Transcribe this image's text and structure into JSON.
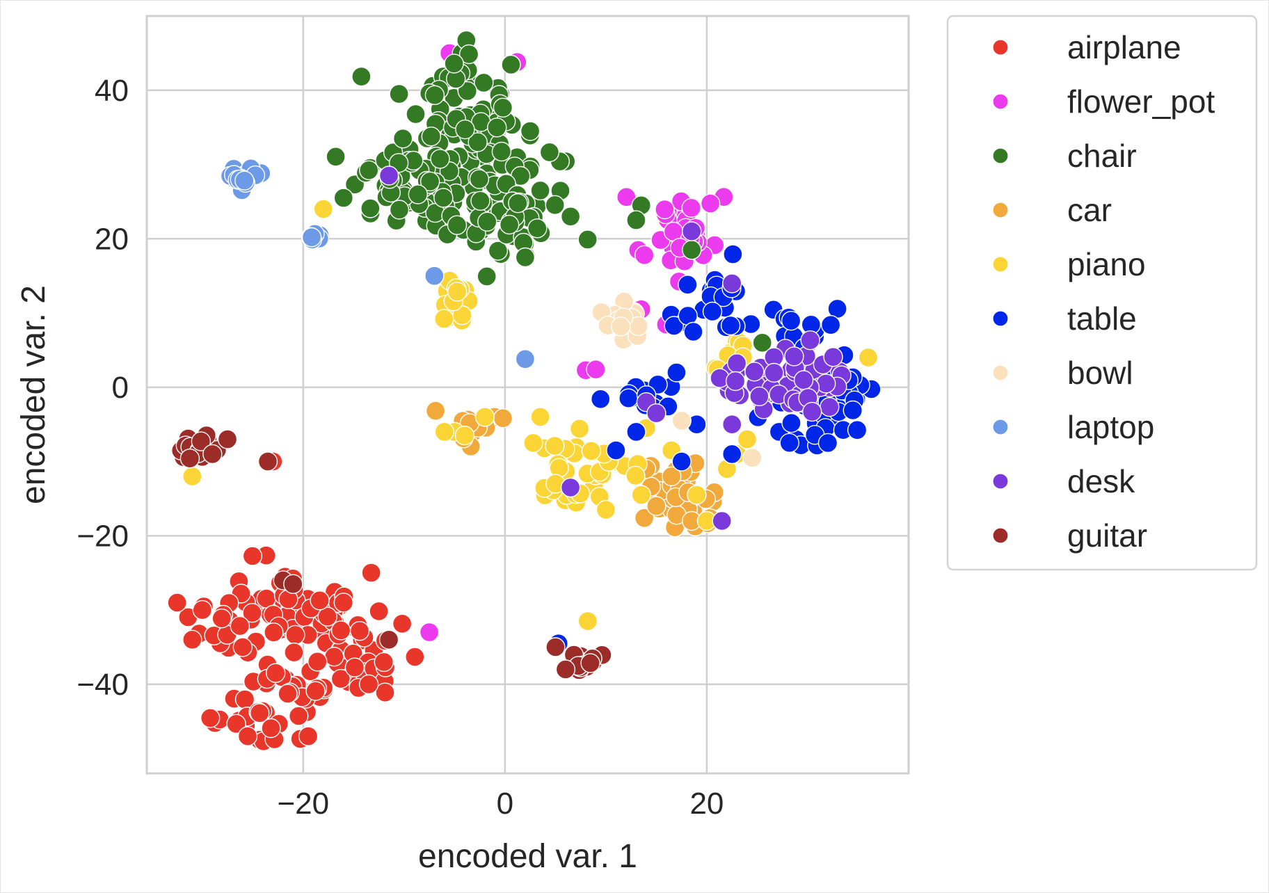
{
  "chart_data": {
    "type": "scatter",
    "title": "",
    "xlabel": "encoded var. 1",
    "ylabel": "encoded var. 2",
    "xlim": [
      -35.5,
      40
    ],
    "ylim": [
      -52,
      50
    ],
    "xticks": [
      -20,
      0,
      20
    ],
    "yticks": [
      -40,
      -20,
      0,
      20,
      40
    ],
    "grid": true,
    "legend_position": "outside-upper-right",
    "series": [
      {
        "name": "airplane",
        "color": "#e8362b",
        "clusters": [
          {
            "cx": -21,
            "cy": -30,
            "sx": 2.6,
            "sy": 2.4,
            "n": 40
          },
          {
            "cx": -16,
            "cy": -33,
            "sx": 2.4,
            "sy": 3.0,
            "n": 35
          },
          {
            "cx": -28,
            "cy": -32,
            "sx": 2.0,
            "sy": 2.0,
            "n": 16
          },
          {
            "cx": -21,
            "cy": -40,
            "sx": 2.6,
            "sy": 2.2,
            "n": 26
          },
          {
            "cx": -23,
            "cy": -45.5,
            "sx": 2.6,
            "sy": 1.4,
            "n": 18
          },
          {
            "cx": -13,
            "cy": -38,
            "sx": 1.6,
            "sy": 2.2,
            "n": 12
          }
        ],
        "points": [
          [
            -31,
            -34
          ],
          [
            -30,
            -30
          ],
          [
            -26,
            -35
          ],
          [
            -25.5,
            -47
          ],
          [
            -19.5,
            -47
          ],
          [
            -16,
            -29
          ],
          [
            -13.5,
            -40
          ],
          [
            -12,
            -37
          ],
          [
            -23,
            -10
          ],
          [
            13,
            -6
          ]
        ]
      },
      {
        "name": "flower_pot",
        "color": "#ec3bee",
        "clusters": [
          {
            "cx": 17,
            "cy": 20,
            "sx": 1.8,
            "sy": 3.0,
            "n": 35
          }
        ],
        "points": [
          [
            -5.5,
            45
          ],
          [
            1.2,
            43.8
          ],
          [
            8,
            2.3
          ],
          [
            9,
            2.4
          ],
          [
            -7.5,
            -33
          ],
          [
            13.5,
            10.5
          ]
        ]
      },
      {
        "name": "chair",
        "color": "#347a25",
        "clusters": [
          {
            "cx": -4,
            "cy": 37,
            "sx": 2.3,
            "sy": 4.2,
            "n": 65
          },
          {
            "cx": -4,
            "cy": 27,
            "sx": 4.8,
            "sy": 4.2,
            "n": 95
          },
          {
            "cx": -11,
            "cy": 28,
            "sx": 2.5,
            "sy": 2.6,
            "n": 24
          },
          {
            "cx": 1,
            "cy": 22,
            "sx": 2.2,
            "sy": 2.0,
            "n": 18
          }
        ],
        "points": [
          [
            -16,
            25.5
          ],
          [
            -10.5,
            39.5
          ],
          [
            2.5,
            34.5
          ],
          [
            3.5,
            26.5
          ],
          [
            6.5,
            23
          ],
          [
            2,
            17.5
          ],
          [
            13.5,
            24.5
          ],
          [
            13,
            22.5
          ],
          [
            18.5,
            18.5
          ],
          [
            25.5,
            6
          ]
        ]
      },
      {
        "name": "car",
        "color": "#f2a93b",
        "clusters": [
          {
            "cx": -3.5,
            "cy": -5,
            "sx": 1.3,
            "sy": 0.8,
            "n": 14
          },
          {
            "cx": 17,
            "cy": -15,
            "sx": 1.7,
            "sy": 2.2,
            "n": 40
          }
        ],
        "points": [
          [
            14,
            -11
          ],
          [
            15,
            -16
          ],
          [
            18.5,
            -18
          ],
          [
            16.5,
            -12
          ]
        ]
      },
      {
        "name": "piano",
        "color": "#fbd535",
        "clusters": [
          {
            "cx": -5,
            "cy": 11.5,
            "sx": 0.8,
            "sy": 2.0,
            "n": 14
          },
          {
            "cx": 8,
            "cy": -11,
            "sx": 3.2,
            "sy": 2.4,
            "n": 32
          },
          {
            "cx": 23,
            "cy": 4,
            "sx": 1.6,
            "sy": 1.0,
            "n": 10
          }
        ],
        "points": [
          [
            -18,
            24
          ],
          [
            -5,
            -6
          ],
          [
            -4,
            -6.5
          ],
          [
            -6,
            -6
          ],
          [
            -2,
            -4
          ],
          [
            3.5,
            -4
          ],
          [
            2.8,
            -7.5
          ],
          [
            5,
            -13
          ],
          [
            10,
            -16.5
          ],
          [
            11,
            -8.5
          ],
          [
            13.5,
            -14.5
          ],
          [
            14,
            -5.5
          ],
          [
            16.5,
            -8.5
          ],
          [
            19,
            -14.5
          ],
          [
            20,
            -18
          ],
          [
            23,
            -9
          ],
          [
            24,
            -7
          ],
          [
            22,
            -11
          ],
          [
            8.2,
            -31.5
          ],
          [
            -31,
            -12
          ],
          [
            36,
            4
          ]
        ]
      },
      {
        "name": "table",
        "color": "#0027e8",
        "clusters": [
          {
            "cx": 29,
            "cy": 8.5,
            "sx": 1.8,
            "sy": 2.0,
            "n": 16
          },
          {
            "cx": 21.5,
            "cy": 14.5,
            "sx": 1.4,
            "sy": 2.6,
            "n": 14
          },
          {
            "cx": 19,
            "cy": 9.5,
            "sx": 1.6,
            "sy": 1.2,
            "n": 8
          },
          {
            "cx": 13.5,
            "cy": -1,
            "sx": 1.5,
            "sy": 1.3,
            "n": 16
          },
          {
            "cx": 29,
            "cy": -3,
            "sx": 2.2,
            "sy": 2.4,
            "n": 32
          },
          {
            "cx": 34,
            "cy": -1,
            "sx": 1.2,
            "sy": 2.4,
            "n": 14
          }
        ],
        "points": [
          [
            17,
            2
          ],
          [
            11,
            -8.5
          ],
          [
            13,
            -6
          ],
          [
            17.5,
            -10
          ],
          [
            19,
            -5
          ],
          [
            22.5,
            -9
          ],
          [
            5.3,
            -34.5
          ],
          [
            32,
            -7.5
          ]
        ]
      },
      {
        "name": "bowl",
        "color": "#fae0bb",
        "clusters": [
          {
            "cx": 12.2,
            "cy": 9,
            "sx": 0.8,
            "sy": 1.4,
            "n": 16
          }
        ],
        "points": [
          [
            24.5,
            -9.5
          ],
          [
            17.5,
            -4.5
          ]
        ]
      },
      {
        "name": "laptop",
        "color": "#6d9ae6",
        "clusters": [
          {
            "cx": -26,
            "cy": 28.5,
            "sx": 1.0,
            "sy": 0.8,
            "n": 18
          },
          {
            "cx": -18.8,
            "cy": 20,
            "sx": 0.4,
            "sy": 0.4,
            "n": 6
          }
        ],
        "points": [
          [
            -7,
            15
          ],
          [
            2,
            3.8
          ]
        ]
      },
      {
        "name": "desk",
        "color": "#7a39db",
        "clusters": [
          {
            "cx": 29,
            "cy": 0.5,
            "sx": 2.8,
            "sy": 2.2,
            "n": 45
          },
          {
            "cx": 22.5,
            "cy": 1.0,
            "sx": 1.3,
            "sy": 1.0,
            "n": 10
          }
        ],
        "points": [
          [
            14,
            -2
          ],
          [
            15,
            -3.5
          ],
          [
            22.5,
            -5
          ],
          [
            21.5,
            -18
          ],
          [
            6.5,
            -13.5
          ],
          [
            22.5,
            14
          ],
          [
            -11.5,
            28.5
          ],
          [
            18.5,
            21
          ]
        ]
      },
      {
        "name": "guitar",
        "color": "#9b2c28",
        "clusters": [
          {
            "cx": -30.5,
            "cy": -8,
            "sx": 1.0,
            "sy": 1.3,
            "n": 18
          },
          {
            "cx": 8,
            "cy": -37,
            "sx": 1.0,
            "sy": 0.9,
            "n": 14
          }
        ],
        "points": [
          [
            -27.5,
            -7
          ],
          [
            -29,
            -9
          ],
          [
            -23.5,
            -10
          ],
          [
            -22,
            -26
          ],
          [
            -21,
            -26.5
          ],
          [
            -11.5,
            -34
          ],
          [
            5,
            -35
          ],
          [
            6,
            -38
          ]
        ]
      }
    ],
    "style": {
      "background": "#ffffff",
      "grid_color": "#cfcfcf",
      "frame_color": "#cfcfcf",
      "marker_edge": "#ffffff",
      "text_color": "#262626"
    }
  }
}
